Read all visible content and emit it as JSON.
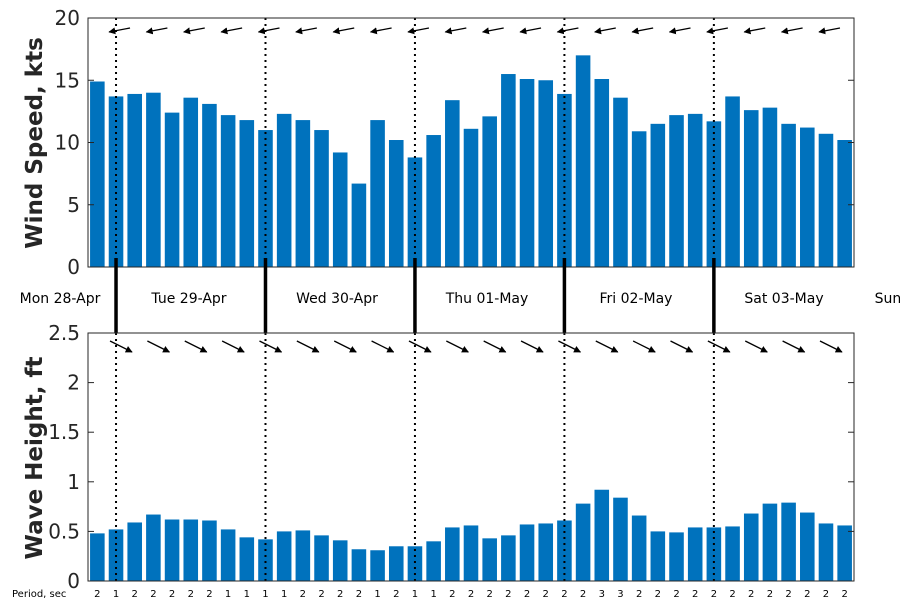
{
  "chart_data": [
    {
      "type": "bar",
      "ylabel": "Wind Speed, kts",
      "ylim": [
        0,
        20
      ],
      "yticks": [
        "0",
        "5",
        "10",
        "15",
        "20"
      ],
      "bar_color": "#0072bd",
      "values": [
        14.9,
        13.7,
        13.9,
        14.0,
        12.4,
        13.6,
        13.1,
        12.2,
        11.8,
        11.0,
        12.3,
        11.8,
        11.0,
        9.2,
        6.7,
        11.8,
        10.2,
        8.8,
        10.6,
        13.4,
        11.1,
        12.1,
        15.5,
        15.1,
        15.0,
        13.9,
        17.0,
        15.1,
        13.6,
        10.9,
        11.5,
        12.2,
        12.3,
        11.7,
        13.7,
        12.6,
        12.8,
        11.5,
        11.2,
        10.7,
        10.2
      ],
      "direction_arrows": "wind direction arrows pointing left along the top of the plot"
    },
    {
      "type": "bar",
      "ylabel": "Wave Height, ft",
      "ylim": [
        0,
        2.5
      ],
      "yticks": [
        "0",
        "0.5",
        "1",
        "1.5",
        "2",
        "2.5"
      ],
      "bar_color": "#0072bd",
      "values": [
        0.48,
        0.52,
        0.59,
        0.67,
        0.62,
        0.62,
        0.61,
        0.52,
        0.44,
        0.42,
        0.5,
        0.51,
        0.46,
        0.41,
        0.32,
        0.31,
        0.35,
        0.35,
        0.4,
        0.54,
        0.56,
        0.43,
        0.46,
        0.57,
        0.58,
        0.61,
        0.78,
        0.92,
        0.84,
        0.66,
        0.5,
        0.49,
        0.54,
        0.54,
        0.55,
        0.68,
        0.78,
        0.79,
        0.69,
        0.58,
        0.56
      ],
      "periods": [
        "2",
        "1",
        "2",
        "2",
        "2",
        "2",
        "2",
        "1",
        "1",
        "1",
        "1",
        "2",
        "2",
        "2",
        "2",
        "1",
        "2",
        "1",
        "1",
        "2",
        "2",
        "2",
        "2",
        "2",
        "2",
        "2",
        "2",
        "3",
        "3",
        "2",
        "2",
        "2",
        "2",
        "2",
        "2",
        "2",
        "2",
        "2",
        "2",
        "2",
        "2"
      ],
      "period_label": "Period, sec"
    }
  ],
  "days": [
    "Mon 28-Apr",
    "Tue 29-Apr",
    "Wed 30-Apr",
    "Thu 01-May",
    "Fri 02-May",
    "Sat 03-May",
    "Sun"
  ]
}
